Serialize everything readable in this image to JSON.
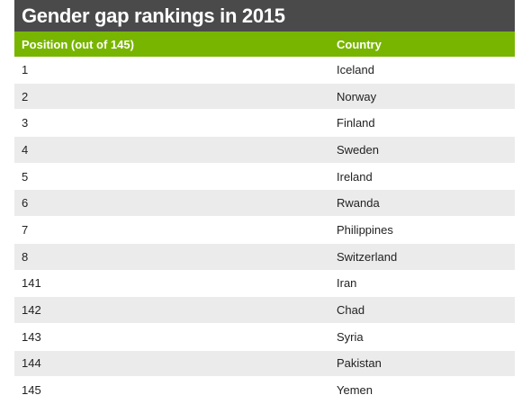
{
  "chart_data": {
    "type": "table",
    "title": "Gender gap rankings in 2015",
    "columns": [
      "Position (out of 145)",
      "Country"
    ],
    "rows": [
      [
        "1",
        "Iceland"
      ],
      [
        "2",
        "Norway"
      ],
      [
        "3",
        "Finland"
      ],
      [
        "4",
        "Sweden"
      ],
      [
        "5",
        "Ireland"
      ],
      [
        "6",
        "Rwanda"
      ],
      [
        "7",
        "Philippines"
      ],
      [
        "8",
        "Switzerland"
      ],
      [
        "141",
        "Iran"
      ],
      [
        "142",
        "Chad"
      ],
      [
        "143",
        "Syria"
      ],
      [
        "144",
        "Pakistan"
      ],
      [
        "145",
        "Yemen"
      ]
    ]
  },
  "colors": {
    "title_bg": "#4a4a4a",
    "header_bg": "#78b500",
    "stripe_bg": "#ebebeb"
  }
}
